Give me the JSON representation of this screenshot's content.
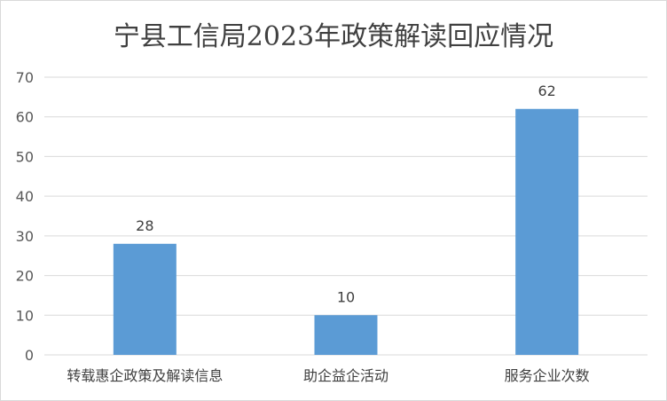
{
  "chart_data": {
    "type": "bar",
    "title": "宁县工信局2023年政策解读回应情况",
    "categories": [
      "转载惠企政策及解读信息",
      "助企益企活动",
      "服务企业次数"
    ],
    "values": [
      28,
      10,
      62
    ],
    "ylim": [
      0,
      70
    ],
    "yticks": [
      0,
      10,
      20,
      30,
      40,
      50,
      60,
      70
    ],
    "xlabel": "",
    "ylabel": "",
    "grid": true,
    "legend": "none",
    "bar_color": "#5b9bd5",
    "grid_color": "#d9d9d9",
    "data_labels": true
  }
}
